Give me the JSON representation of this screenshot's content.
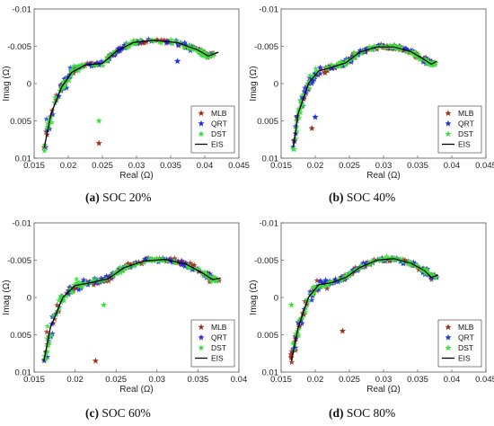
{
  "legend_labels": [
    "MLB",
    "QRT",
    "DST",
    "EIS"
  ],
  "colors": {
    "MLB": "#a0301a",
    "QRT": "#1f2fe0",
    "DST": "#3ce03c",
    "EIS": "#000000"
  },
  "chart_data": [
    {
      "type": "scatter",
      "panel_letter": "(a)",
      "caption_text": "SOC 20%",
      "xlabel": "Real (Ω)",
      "ylabel": "Imag (Ω)",
      "xlim": [
        0.015,
        0.045
      ],
      "ylim": [
        0.01,
        -0.01
      ],
      "xticks": [
        "0.015",
        "0.02",
        "0.025",
        "0.03",
        "0.035",
        "0.04",
        "0.045"
      ],
      "yticks": [
        "-0.01",
        "-0.005",
        "0",
        "0.005",
        "0.01"
      ],
      "legend_position": "lower-right",
      "eis_curve": [
        [
          0.0165,
          0.0085
        ],
        [
          0.0175,
          0.004
        ],
        [
          0.019,
          0.0005
        ],
        [
          0.0205,
          -0.0015
        ],
        [
          0.0225,
          -0.0025
        ],
        [
          0.025,
          -0.0027
        ],
        [
          0.027,
          -0.0043
        ],
        [
          0.0295,
          -0.0055
        ],
        [
          0.0325,
          -0.0058
        ],
        [
          0.036,
          -0.0055
        ],
        [
          0.039,
          -0.0045
        ],
        [
          0.0405,
          -0.0037
        ],
        [
          0.042,
          -0.0042
        ]
      ],
      "outliers": [
        [
          0.0245,
          0.008,
          "MLB"
        ],
        [
          0.0245,
          0.005,
          "DST"
        ],
        [
          0.036,
          -0.003,
          "QRT"
        ],
        [
          0.0165,
          0.009,
          "DST"
        ]
      ]
    },
    {
      "type": "scatter",
      "panel_letter": "(b)",
      "caption_text": "SOC 40%",
      "xlabel": "Real (Ω)",
      "ylabel": "Imag (Ω)",
      "xlim": [
        0.015,
        0.045
      ],
      "ylim": [
        0.01,
        -0.01
      ],
      "xticks": [
        "0.015",
        "0.02",
        "0.025",
        "0.03",
        "0.035",
        "0.04",
        "0.045"
      ],
      "yticks": [
        "-0.01",
        "-0.005",
        "0",
        "0.005",
        "0.01"
      ],
      "legend_position": "lower-right",
      "eis_curve": [
        [
          0.0168,
          0.0085
        ],
        [
          0.0175,
          0.004
        ],
        [
          0.019,
          0.0
        ],
        [
          0.0205,
          -0.0017
        ],
        [
          0.0225,
          -0.0022
        ],
        [
          0.0245,
          -0.0028
        ],
        [
          0.0265,
          -0.0042
        ],
        [
          0.029,
          -0.0049
        ],
        [
          0.0315,
          -0.0049
        ],
        [
          0.034,
          -0.0043
        ],
        [
          0.036,
          -0.0032
        ],
        [
          0.037,
          -0.0026
        ],
        [
          0.0378,
          -0.003
        ]
      ],
      "outliers": [
        [
          0.02,
          0.0045,
          "QRT"
        ],
        [
          0.0195,
          0.006,
          "MLB"
        ]
      ]
    },
    {
      "type": "scatter",
      "panel_letter": "(c)",
      "caption_text": "SOC 60%",
      "xlabel": "Real (Ω)",
      "ylabel": "Imag (Ω)",
      "xlim": [
        0.015,
        0.04
      ],
      "ylim": [
        0.01,
        -0.01
      ],
      "xticks": [
        "0.015",
        "0.02",
        "0.025",
        "0.03",
        "0.035",
        "0.04"
      ],
      "yticks": [
        "-0.01",
        "-0.005",
        "0",
        "0.005",
        "0.01"
      ],
      "legend_position": "lower-right",
      "eis_curve": [
        [
          0.0162,
          0.0085
        ],
        [
          0.017,
          0.004
        ],
        [
          0.0185,
          0.0
        ],
        [
          0.02,
          -0.0016
        ],
        [
          0.022,
          -0.002
        ],
        [
          0.024,
          -0.0025
        ],
        [
          0.026,
          -0.004
        ],
        [
          0.0285,
          -0.0049
        ],
        [
          0.031,
          -0.0051
        ],
        [
          0.0335,
          -0.0045
        ],
        [
          0.0355,
          -0.0033
        ],
        [
          0.0368,
          -0.0024
        ],
        [
          0.0378,
          -0.0026
        ]
      ],
      "outliers": [
        [
          0.0225,
          0.0085,
          "MLB"
        ],
        [
          0.0235,
          0.001,
          "DST"
        ]
      ]
    },
    {
      "type": "scatter",
      "panel_letter": "(d)",
      "caption_text": "SOC 80%",
      "xlabel": "Real (Ω)",
      "ylabel": "Imag (Ω)",
      "xlim": [
        0.015,
        0.045
      ],
      "ylim": [
        0.01,
        -0.01
      ],
      "xticks": [
        "0.015",
        "0.02",
        "0.025",
        "0.03",
        "0.035",
        "0.04",
        "0.045"
      ],
      "yticks": [
        "-0.01",
        "-0.005",
        "0",
        "0.005",
        "0.01"
      ],
      "legend_position": "lower-right",
      "eis_curve": [
        [
          0.0165,
          0.0085
        ],
        [
          0.0175,
          0.004
        ],
        [
          0.019,
          0.0
        ],
        [
          0.0205,
          -0.0017
        ],
        [
          0.0225,
          -0.002
        ],
        [
          0.0245,
          -0.0027
        ],
        [
          0.0265,
          -0.004
        ],
        [
          0.029,
          -0.005
        ],
        [
          0.0315,
          -0.0052
        ],
        [
          0.034,
          -0.0046
        ],
        [
          0.036,
          -0.0036
        ],
        [
          0.037,
          -0.0027
        ],
        [
          0.038,
          -0.003
        ]
      ],
      "outliers": [
        [
          0.0165,
          0.001,
          "DST"
        ],
        [
          0.024,
          0.0045,
          "MLB"
        ]
      ]
    }
  ]
}
